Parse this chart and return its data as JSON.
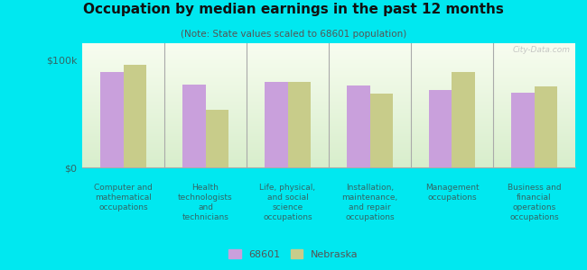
{
  "title": "Occupation by median earnings in the past 12 months",
  "subtitle": "(Note: State values scaled to 68601 population)",
  "categories": [
    "Computer and\nmathematical\noccupations",
    "Health\ntechnologists\nand\ntechnicians",
    "Life, physical,\nand social\nscience\noccupations",
    "Installation,\nmaintenance,\nand repair\noccupations",
    "Management\noccupations",
    "Business and\nfinancial\noperations\noccupations"
  ],
  "values_68601": [
    88000,
    77000,
    79000,
    76000,
    72000,
    69000
  ],
  "values_nebraska": [
    95000,
    53000,
    79000,
    68000,
    88000,
    75000
  ],
  "color_68601": "#c9a0dc",
  "color_nebraska": "#c8cc8a",
  "background_outer": "#00e8f0",
  "background_chart_top": "#f8fdf0",
  "background_chart_bottom": "#d8eecc",
  "ytick_labels": [
    "$0",
    "$100k"
  ],
  "ytick_values": [
    0,
    100000
  ],
  "ylim": [
    0,
    115000
  ],
  "legend_label_68601": "68601",
  "legend_label_nebraska": "Nebraska",
  "watermark": "City-Data.com"
}
